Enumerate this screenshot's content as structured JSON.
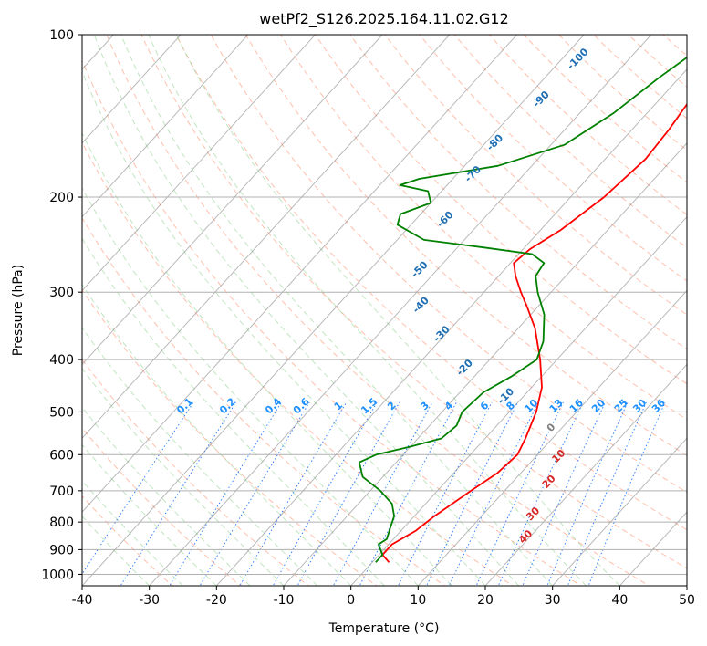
{
  "chart_data": {
    "type": "line",
    "subtype": "skew-T log-P diagram",
    "title": "wetPf2_S126.2025.164.11.02.G12",
    "xlabel": "Temperature (°C)",
    "ylabel": "Pressure (hPa)",
    "xlim": [
      -40,
      50
    ],
    "ylim": [
      1050,
      100
    ],
    "y_scale": "log",
    "xticks": [
      -40,
      -30,
      -20,
      -10,
      0,
      10,
      20,
      30,
      40,
      50
    ],
    "yticks": [
      1000,
      900,
      800,
      700,
      600,
      500,
      400,
      300,
      200,
      100
    ],
    "grid": true,
    "series": [
      {
        "role": "temperature",
        "color": "#ff0000",
        "points": [
          {
            "p": 950,
            "t": 2.5
          },
          {
            "p": 920,
            "t": 0.5
          },
          {
            "p": 880,
            "t": 0.5
          },
          {
            "p": 850,
            "t": 1.5
          },
          {
            "p": 830,
            "t": 2.2
          },
          {
            "p": 780,
            "t": 3.0
          },
          {
            "p": 700,
            "t": 5.0
          },
          {
            "p": 650,
            "t": 6.5
          },
          {
            "p": 600,
            "t": 7.0
          },
          {
            "p": 560,
            "t": 6.0
          },
          {
            "p": 500,
            "t": 4.0
          },
          {
            "p": 450,
            "t": 1.5
          },
          {
            "p": 400,
            "t": -2.5
          },
          {
            "p": 350,
            "t": -7.5
          },
          {
            "p": 320,
            "t": -11.5
          },
          {
            "p": 300,
            "t": -14.5
          },
          {
            "p": 280,
            "t": -17.5
          },
          {
            "p": 265,
            "t": -19.5
          },
          {
            "p": 250,
            "t": -19.0
          },
          {
            "p": 230,
            "t": -17.0
          },
          {
            "p": 200,
            "t": -15.0
          },
          {
            "p": 170,
            "t": -14.0
          },
          {
            "p": 150,
            "t": -14.5
          },
          {
            "p": 130,
            "t": -15.5
          },
          {
            "p": 115,
            "t": -16.5
          },
          {
            "p": 100,
            "t": -18.0
          }
        ]
      },
      {
        "role": "dewpoint",
        "color": "#008000",
        "points": [
          {
            "p": 950,
            "t": 0.5
          },
          {
            "p": 920,
            "t": 0.5
          },
          {
            "p": 880,
            "t": -1.5
          },
          {
            "p": 860,
            "t": -1.0
          },
          {
            "p": 820,
            "t": -2.0
          },
          {
            "p": 780,
            "t": -3.0
          },
          {
            "p": 740,
            "t": -5.0
          },
          {
            "p": 700,
            "t": -8.5
          },
          {
            "p": 660,
            "t": -13.0
          },
          {
            "p": 620,
            "t": -15.5
          },
          {
            "p": 600,
            "t": -14.0
          },
          {
            "p": 580,
            "t": -10.0
          },
          {
            "p": 560,
            "t": -6.5
          },
          {
            "p": 530,
            "t": -6.0
          },
          {
            "p": 500,
            "t": -7.0
          },
          {
            "p": 460,
            "t": -6.5
          },
          {
            "p": 430,
            "t": -4.5
          },
          {
            "p": 400,
            "t": -3.0
          },
          {
            "p": 370,
            "t": -4.5
          },
          {
            "p": 330,
            "t": -8.0
          },
          {
            "p": 300,
            "t": -12.0
          },
          {
            "p": 280,
            "t": -14.5
          },
          {
            "p": 265,
            "t": -15.0
          },
          {
            "p": 255,
            "t": -18.0
          },
          {
            "p": 248,
            "t": -26.0
          },
          {
            "p": 240,
            "t": -36.0
          },
          {
            "p": 225,
            "t": -42.0
          },
          {
            "p": 215,
            "t": -43.0
          },
          {
            "p": 205,
            "t": -40.0
          },
          {
            "p": 195,
            "t": -42.0
          },
          {
            "p": 190,
            "t": -47.0
          },
          {
            "p": 185,
            "t": -45.0
          },
          {
            "p": 175,
            "t": -35.0
          },
          {
            "p": 160,
            "t": -28.0
          },
          {
            "p": 140,
            "t": -25.0
          },
          {
            "p": 120,
            "t": -23.0
          },
          {
            "p": 100,
            "t": -20.0
          }
        ]
      }
    ],
    "dry_adiabat_labels": [
      {
        "text": "-100",
        "t": -37,
        "p": 112
      },
      {
        "text": "-90",
        "t": -37,
        "p": 133
      },
      {
        "text": "-80",
        "t": -38,
        "p": 160
      },
      {
        "text": "-70",
        "t": -37,
        "p": 183
      },
      {
        "text": "-60",
        "t": -35,
        "p": 222
      },
      {
        "text": "-50",
        "t": -32,
        "p": 275
      },
      {
        "text": "-40",
        "t": -27,
        "p": 320
      },
      {
        "text": "-30",
        "t": -20,
        "p": 362
      },
      {
        "text": "-20",
        "t": -12,
        "p": 418
      },
      {
        "text": "-10",
        "t": -2,
        "p": 472
      },
      {
        "text": "0",
        "t": 9,
        "p": 540
      }
    ],
    "mixing_ratio_labels": {
      "pressure": 500,
      "values": [
        "0.1",
        "0.2",
        "0.4",
        "0.6",
        "1",
        "1.5",
        "2",
        "3",
        "4",
        "6",
        "8",
        "10",
        "13",
        "16",
        "20",
        "25",
        "30",
        "36"
      ]
    },
    "moist_adiabat_labels": [
      {
        "text": "10",
        "t": 14,
        "p": 610
      },
      {
        "text": "20",
        "t": 16,
        "p": 680
      },
      {
        "text": "30",
        "t": 18,
        "p": 780
      },
      {
        "text": "40",
        "t": 20,
        "p": 860
      }
    ]
  },
  "colors": {
    "grid": "#b0b0b0",
    "dry_adiabat": "#ff8c69",
    "moist_adiabat": "#8fcf8f",
    "mixing_ratio": "#1f77ff",
    "dry_label": "#1f6fb5",
    "mixing_label": "#1e90ff",
    "moist_label": "#d62728",
    "zero_label": "#808080",
    "skewed_isotherm": "#808080",
    "tan_curves": "#d2b48c"
  }
}
